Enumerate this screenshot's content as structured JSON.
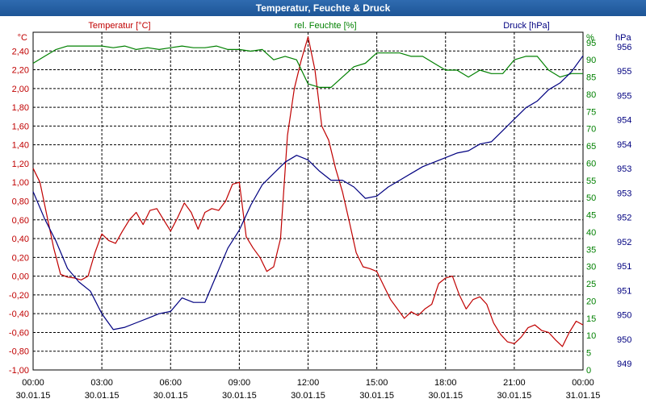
{
  "chart_data": {
    "type": "line",
    "title": "Temperatur, Feuchte & Druck",
    "x_time_labels": [
      "00:00",
      "03:00",
      "06:00",
      "09:00",
      "12:00",
      "15:00",
      "18:00",
      "21:00",
      "00:00"
    ],
    "x_date_labels": [
      "30.01.15",
      "30.01.15",
      "30.01.15",
      "30.01.15",
      "30.01.15",
      "30.01.15",
      "30.01.15",
      "30.01.15",
      "31.01.15"
    ],
    "x_range_hours": [
      0,
      24
    ],
    "axes": {
      "temperature": {
        "label": "Temperatur [°C]",
        "unit": "°C",
        "side": "left",
        "color": "#c00000",
        "range": [
          -1.0,
          2.6
        ],
        "ticks": [
          "-1,00",
          "-0,80",
          "-0,60",
          "-0,40",
          "-0,20",
          "0,00",
          "0,20",
          "0,40",
          "0,60",
          "0,80",
          "1,00",
          "1,20",
          "1,40",
          "1,60",
          "1,80",
          "2,00",
          "2,20",
          "2,40"
        ]
      },
      "humidity": {
        "label": "rel. Feuchte [%]",
        "unit": "%",
        "side": "inner-right",
        "color": "#008000",
        "range": [
          0,
          98
        ],
        "ticks": [
          "0",
          "5",
          "10",
          "15",
          "20",
          "25",
          "30",
          "35",
          "40",
          "45",
          "50",
          "55",
          "60",
          "65",
          "70",
          "75",
          "80",
          "85",
          "90",
          "95"
        ]
      },
      "pressure": {
        "label": "Druck [hPa]",
        "unit": "hPa",
        "side": "outer-right",
        "color": "#000080",
        "ticks": [
          "949",
          "950",
          "950",
          "951",
          "951",
          "952",
          "952",
          "953",
          "953",
          "954",
          "954",
          "955",
          "955",
          "956"
        ]
      }
    },
    "series": [
      {
        "name": "Temperatur",
        "axis": "temperature",
        "color": "#c00000",
        "x": [
          0,
          0.3,
          0.6,
          0.9,
          1.2,
          1.5,
          1.8,
          2.1,
          2.4,
          2.7,
          3.0,
          3.3,
          3.6,
          3.9,
          4.2,
          4.5,
          4.8,
          5.1,
          5.4,
          5.7,
          6.0,
          6.3,
          6.6,
          6.9,
          7.2,
          7.5,
          7.8,
          8.1,
          8.4,
          8.7,
          9.0,
          9.3,
          9.6,
          9.9,
          10.2,
          10.5,
          10.8,
          11.1,
          11.4,
          11.7,
          12.0,
          12.3,
          12.6,
          12.9,
          13.2,
          13.5,
          13.8,
          14.1,
          14.4,
          14.7,
          15.0,
          15.3,
          15.6,
          15.9,
          16.2,
          16.5,
          16.8,
          17.1,
          17.4,
          17.7,
          18.0,
          18.3,
          18.6,
          18.9,
          19.2,
          19.5,
          19.8,
          20.1,
          20.4,
          20.7,
          21.0,
          21.3,
          21.6,
          21.9,
          22.2,
          22.5,
          22.8,
          23.1,
          23.4,
          23.7,
          24.0
        ],
        "y": [
          1.15,
          1.0,
          0.65,
          0.3,
          0.02,
          -0.01,
          -0.02,
          -0.04,
          0.0,
          0.25,
          0.45,
          0.38,
          0.35,
          0.48,
          0.6,
          0.68,
          0.55,
          0.7,
          0.72,
          0.6,
          0.48,
          0.62,
          0.78,
          0.68,
          0.5,
          0.68,
          0.72,
          0.7,
          0.8,
          0.98,
          1.0,
          0.42,
          0.3,
          0.2,
          0.05,
          0.1,
          0.4,
          1.5,
          2.0,
          2.3,
          2.55,
          2.2,
          1.6,
          1.45,
          1.15,
          0.9,
          0.58,
          0.25,
          0.1,
          0.08,
          0.05,
          -0.1,
          -0.25,
          -0.35,
          -0.45,
          -0.38,
          -0.42,
          -0.35,
          -0.3,
          -0.08,
          -0.02,
          0.0,
          -0.2,
          -0.35,
          -0.25,
          -0.22,
          -0.3,
          -0.5,
          -0.62,
          -0.7,
          -0.72,
          -0.65,
          -0.55,
          -0.52,
          -0.58,
          -0.6,
          -0.68,
          -0.75,
          -0.6,
          -0.48,
          -0.52
        ]
      },
      {
        "name": "rel. Feuchte",
        "axis": "humidity",
        "color": "#008000",
        "x": [
          0,
          0.5,
          1.0,
          1.5,
          2.0,
          2.5,
          3.0,
          3.5,
          4.0,
          4.5,
          5.0,
          5.5,
          6.0,
          6.5,
          7.0,
          7.5,
          8.0,
          8.5,
          9.0,
          9.5,
          10.0,
          10.5,
          11.0,
          11.5,
          12.0,
          12.5,
          13.0,
          13.5,
          14.0,
          14.5,
          15.0,
          15.5,
          16.0,
          16.5,
          17.0,
          17.5,
          18.0,
          18.5,
          19.0,
          19.5,
          20.0,
          20.5,
          21.0,
          21.5,
          22.0,
          22.5,
          23.0,
          23.5,
          24.0
        ],
        "y": [
          89,
          91,
          93,
          94,
          94,
          94,
          94,
          93.5,
          94,
          93,
          93.5,
          93,
          93.5,
          94,
          93.5,
          93.5,
          94,
          93,
          93,
          92.5,
          93,
          90,
          91,
          90,
          83,
          82,
          82,
          85,
          88,
          89,
          92,
          92,
          92,
          91,
          91,
          89,
          87,
          87,
          85,
          87,
          86,
          86,
          90,
          91,
          91,
          87,
          85,
          86,
          86
        ]
      },
      {
        "name": "Druck",
        "axis": "pressure",
        "color": "#000080",
        "x": [
          0,
          0.5,
          1.0,
          1.5,
          2.0,
          2.5,
          3.0,
          3.5,
          4.0,
          4.5,
          5.0,
          5.5,
          6.0,
          6.5,
          7.0,
          7.5,
          8.0,
          8.5,
          9.0,
          9.5,
          10.0,
          10.5,
          11.0,
          11.5,
          12.0,
          12.5,
          13.0,
          13.5,
          14.0,
          14.5,
          15.0,
          15.5,
          16.0,
          16.5,
          17.0,
          17.5,
          18.0,
          18.5,
          19.0,
          19.5,
          20.0,
          20.5,
          21.0,
          21.5,
          22.0,
          22.5,
          23.0,
          23.5,
          24.0
        ],
        "y": [
          952.8,
          952.2,
          951.7,
          951.1,
          950.8,
          950.6,
          950.1,
          949.75,
          949.8,
          949.9,
          950.0,
          950.1,
          950.15,
          950.45,
          950.35,
          950.35,
          950.95,
          951.55,
          951.95,
          952.5,
          952.95,
          953.2,
          953.45,
          953.6,
          953.5,
          953.25,
          953.05,
          953.05,
          952.9,
          952.65,
          952.7,
          952.9,
          953.05,
          953.2,
          953.35,
          953.45,
          953.55,
          953.65,
          953.7,
          953.85,
          953.9,
          954.15,
          954.4,
          954.65,
          954.8,
          955.05,
          955.2,
          955.45,
          955.8
        ]
      }
    ]
  }
}
